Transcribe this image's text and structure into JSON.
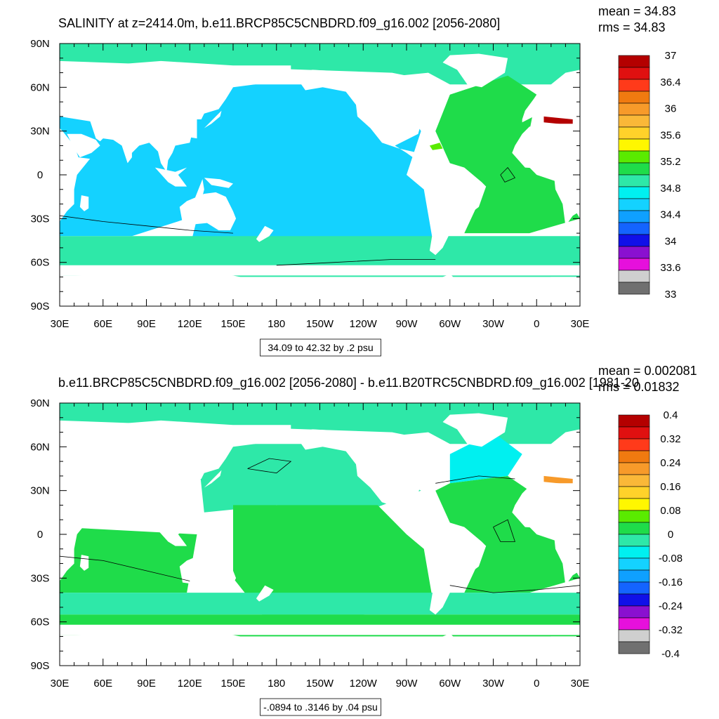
{
  "colors": {
    "land": "#ffffff",
    "frame": "#000000",
    "contour_line": "#000000"
  },
  "chart_data": [
    {
      "type": "heatmap",
      "subtype": "filled-contour-map",
      "title": "SALINITY at z=2414.0m, b.e11.BRCP85C5CNBDRD.f09_g16.002 [2056-2080]",
      "stats": {
        "mean": "mean = 34.83",
        "rms": "rms = 34.83"
      },
      "contour_info": "34.09 to 42.32 by .2 psu",
      "xlabel": "",
      "ylabel": "",
      "x_ticks": [
        "30E",
        "60E",
        "90E",
        "120E",
        "150E",
        "180",
        "150W",
        "120W",
        "90W",
        "60W",
        "30W",
        "0",
        "30E"
      ],
      "y_ticks": [
        "90N",
        "60N",
        "30N",
        "0",
        "30S",
        "60S",
        "90S"
      ],
      "xlim_deg_east": [
        30,
        390
      ],
      "ylim_deg_north": [
        -90,
        90
      ],
      "colorbar": {
        "labels": [
          "37",
          "36.4",
          "36",
          "35.6",
          "35.2",
          "34.8",
          "34.4",
          "34",
          "33.6",
          "33"
        ],
        "colors": [
          "#b40000",
          "#e01010",
          "#ff3a1a",
          "#f07a10",
          "#f79a2a",
          "#fab838",
          "#ffd22a",
          "#fff700",
          "#5aeb00",
          "#1fdc4a",
          "#2ee8a8",
          "#00f0f0",
          "#14d2ff",
          "#0fa0ff",
          "#1464ff",
          "#1010e8",
          "#8a10d0",
          "#e610dc",
          "#cfcfcf",
          "#707070"
        ]
      },
      "regions": [
        {
          "name": "arctic-band",
          "value": 34.8,
          "color": "#2ee8a8"
        },
        {
          "name": "pacific-basin",
          "value": 34.7,
          "color": "#14d2ff"
        },
        {
          "name": "indian-basin",
          "value": 34.7,
          "color": "#14d2ff"
        },
        {
          "name": "atlantic-basin",
          "value": 35.0,
          "color": "#1fdc4a"
        },
        {
          "name": "southern-ocean",
          "value": 34.8,
          "color": "#2ee8a8"
        },
        {
          "name": "mediterranean-outflow",
          "value": 36.8,
          "color": "#b40000"
        },
        {
          "name": "caribbean-patch",
          "value": 35.2,
          "color": "#5aeb00"
        },
        {
          "name": "pacific-small-patches",
          "value": 34.3,
          "color": "#0fa0ff"
        }
      ]
    },
    {
      "type": "heatmap",
      "subtype": "filled-contour-map",
      "title": "b.e11.BRCP85C5CNBDRD.f09_g16.002 [2056-2080] - b.e11.B20TRC5CNBDRD.f09_g16.002 [1981-20",
      "stats": {
        "mean": "mean = 0.002081",
        "rms": "rms = 0.01832"
      },
      "contour_info": "-.0894 to .3146 by .04 psu",
      "xlabel": "",
      "ylabel": "",
      "x_ticks": [
        "30E",
        "60E",
        "90E",
        "120E",
        "150E",
        "180",
        "150W",
        "120W",
        "90W",
        "60W",
        "30W",
        "0",
        "30E"
      ],
      "y_ticks": [
        "90N",
        "60N",
        "30N",
        "0",
        "30S",
        "60S",
        "90S"
      ],
      "xlim_deg_east": [
        30,
        390
      ],
      "ylim_deg_north": [
        -90,
        90
      ],
      "colorbar": {
        "labels": [
          "0.4",
          "0.32",
          "0.24",
          "0.16",
          "0.08",
          "0",
          "-0.08",
          "-0.16",
          "-0.24",
          "-0.32",
          "-0.4"
        ],
        "colors": [
          "#b40000",
          "#e01010",
          "#ff3a1a",
          "#f07a10",
          "#f79a2a",
          "#fab838",
          "#ffd22a",
          "#fff700",
          "#5aeb00",
          "#1fdc4a",
          "#2ee8a8",
          "#00f0f0",
          "#14d2ff",
          "#0fa0ff",
          "#1464ff",
          "#1010e8",
          "#8a10d0",
          "#e610dc",
          "#cfcfcf",
          "#707070"
        ]
      },
      "regions": [
        {
          "name": "arctic-band",
          "value": -0.02,
          "color": "#2ee8a8"
        },
        {
          "name": "north-pacific",
          "value": -0.02,
          "color": "#2ee8a8"
        },
        {
          "name": "tropical-south-pacific",
          "value": 0.01,
          "color": "#1fdc4a"
        },
        {
          "name": "indian-ocean",
          "value": 0.01,
          "color": "#1fdc4a"
        },
        {
          "name": "north-atlantic",
          "value": -0.05,
          "color": "#00f0f0"
        },
        {
          "name": "atlantic-basin",
          "value": 0.01,
          "color": "#1fdc4a"
        },
        {
          "name": "southern-ocean-band",
          "value": -0.02,
          "color": "#2ee8a8"
        },
        {
          "name": "antarctic-margin",
          "value": 0.01,
          "color": "#1fdc4a"
        },
        {
          "name": "mediterranean-outflow",
          "value": 0.2,
          "color": "#f79a2a"
        }
      ]
    }
  ]
}
